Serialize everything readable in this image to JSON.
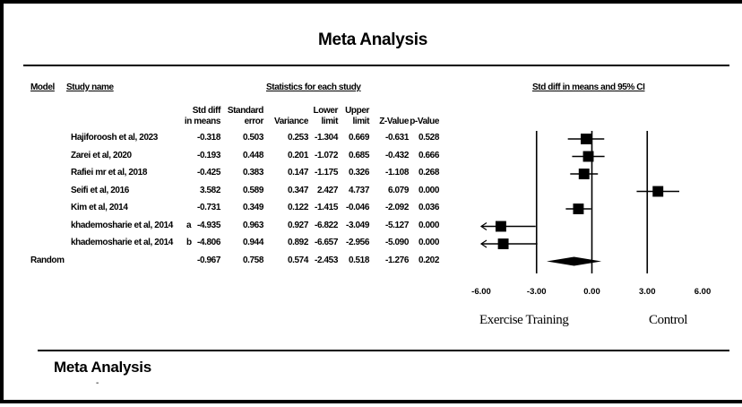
{
  "page": {
    "title": "Meta Analysis",
    "footer_title": "Meta Analysis",
    "footer_mark": "-"
  },
  "headers": {
    "model": "Model",
    "study_name": "Study name",
    "stats_group": "Statistics for each study",
    "ci_group": "Std diff in means and 95% CI"
  },
  "columns": {
    "std_diff_1": "Std diff",
    "std_diff_2": "in means",
    "std_err_1": "Standard",
    "std_err_2": "error",
    "variance": "Variance",
    "lower_1": "Lower",
    "lower_2": "limit",
    "upper_1": "Upper",
    "upper_2": "limit",
    "z": "Z-Value",
    "p": "p-Value"
  },
  "chart_data": {
    "type": "forest",
    "xlim": [
      -6.0,
      6.0
    ],
    "x_ticks": [
      "-6.00",
      "-3.00",
      "0.00",
      "3.00",
      "6.00"
    ],
    "x_tick_values": [
      -6,
      -3,
      0,
      3,
      6
    ],
    "left_label": "Exercise Training",
    "right_label": "Control",
    "rows": [
      {
        "model": "",
        "study": "Hajiforoosh et al, 2023",
        "sub": "",
        "sdm": "-0.318",
        "se": "0.503",
        "var": "0.253",
        "lower": "-1.304",
        "upper": "0.669",
        "z": "-0.631",
        "p": "0.528",
        "point": -0.318,
        "lo": -1.304,
        "hi": 0.669,
        "weight": 0.9
      },
      {
        "model": "",
        "study": "Zarei et al, 2020",
        "sub": "",
        "sdm": "-0.193",
        "se": "0.448",
        "var": "0.201",
        "lower": "-1.072",
        "upper": "0.685",
        "z": "-0.432",
        "p": "0.666",
        "point": -0.193,
        "lo": -1.072,
        "hi": 0.685,
        "weight": 0.9
      },
      {
        "model": "",
        "study": "Rafiei mr et al, 2018",
        "sub": "",
        "sdm": "-0.425",
        "se": "0.383",
        "var": "0.147",
        "lower": "-1.175",
        "upper": "0.326",
        "z": "-1.108",
        "p": "0.268",
        "point": -0.425,
        "lo": -1.175,
        "hi": 0.326,
        "weight": 0.9
      },
      {
        "model": "",
        "study": "Seifi et al, 2016",
        "sub": "",
        "sdm": "3.582",
        "se": "0.589",
        "var": "0.347",
        "lower": "2.427",
        "upper": "4.737",
        "z": "6.079",
        "p": "0.000",
        "point": 3.582,
        "lo": 2.427,
        "hi": 4.737,
        "weight": 0.9
      },
      {
        "model": "",
        "study": "Kim et al, 2014",
        "sub": "",
        "sdm": "-0.731",
        "se": "0.349",
        "var": "0.122",
        "lower": "-1.415",
        "upper": "-0.046",
        "z": "-2.092",
        "p": "0.036",
        "point": -0.731,
        "lo": -1.415,
        "hi": -0.046,
        "weight": 0.9
      },
      {
        "model": "",
        "study": "khademosharie et al, 2014",
        "sub": "a",
        "sdm": "-4.935",
        "se": "0.963",
        "var": "0.927",
        "lower": "-6.822",
        "upper": "-3.049",
        "z": "-5.127",
        "p": "0.000",
        "point": -4.935,
        "lo": -6.822,
        "hi": -3.049,
        "weight": 0.9
      },
      {
        "model": "",
        "study": "khademosharie et al, 2014",
        "sub": "b",
        "sdm": "-4.806",
        "se": "0.944",
        "var": "0.892",
        "lower": "-6.657",
        "upper": "-2.956",
        "z": "-5.090",
        "p": "0.000",
        "point": -4.806,
        "lo": -6.657,
        "hi": -2.956,
        "weight": 0.9
      }
    ],
    "summary": {
      "model": "Random",
      "study": "",
      "sub": "",
      "sdm": "-0.967",
      "se": "0.758",
      "var": "0.574",
      "lower": "-2.453",
      "upper": "0.518",
      "z": "-1.276",
      "p": "0.202",
      "point": -0.967,
      "lo": -2.453,
      "hi": 0.518
    }
  }
}
